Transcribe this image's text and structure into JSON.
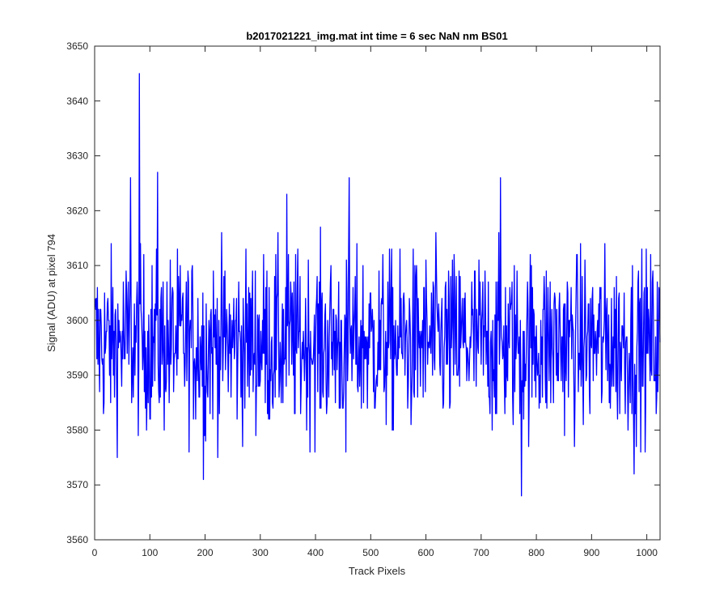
{
  "chart_data": {
    "type": "line",
    "title": "b2017021221_img.mat int time = 6 sec  NaN nm BS01",
    "xlabel": "Track Pixels",
    "ylabel": "Signal (ADU) at pixel 794",
    "xlim": [
      0,
      1024
    ],
    "ylim": [
      3560,
      3650
    ],
    "xticks": [
      0,
      100,
      200,
      300,
      400,
      500,
      600,
      700,
      800,
      900,
      1000
    ],
    "yticks": [
      3560,
      3570,
      3580,
      3590,
      3600,
      3610,
      3620,
      3630,
      3640,
      3650
    ],
    "grid": false,
    "legend": "none",
    "series": [
      {
        "color": "#0000ff",
        "x_start": 1,
        "x_step": 1,
        "count": 1024,
        "mean": 3596,
        "noise_std": 8,
        "features": [
          {
            "x": 81,
            "y": 3645
          },
          {
            "x": 114,
            "y": 3627
          },
          {
            "x": 65,
            "y": 3626
          },
          {
            "x": 461,
            "y": 3626
          },
          {
            "x": 735,
            "y": 3626
          },
          {
            "x": 348,
            "y": 3623
          },
          {
            "x": 197,
            "y": 3571
          },
          {
            "x": 773,
            "y": 3568
          },
          {
            "x": 977,
            "y": 3572
          },
          {
            "x": 455,
            "y": 3576
          }
        ]
      }
    ]
  },
  "colors": {
    "line": "#0000ff",
    "axes": "#262626",
    "background": "#ffffff"
  }
}
